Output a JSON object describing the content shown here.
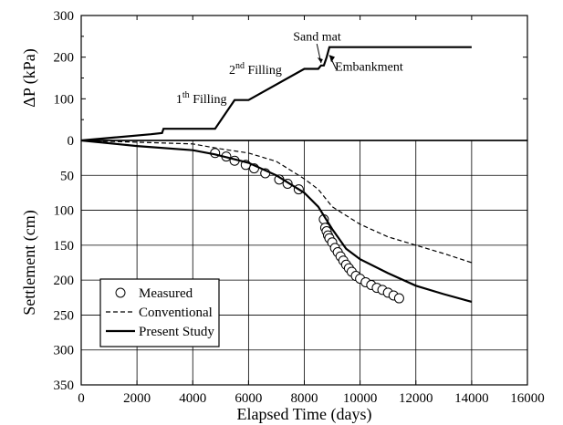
{
  "chart_data": [
    {
      "type": "line",
      "xlabel": "",
      "ylabel": "ΔP (kPa)",
      "xlim": [
        0,
        16000
      ],
      "ylim": [
        0,
        300
      ],
      "x_ticks": [
        0,
        2000,
        4000,
        6000,
        8000,
        10000,
        12000,
        14000,
        16000
      ],
      "y_ticks": [
        0,
        100,
        200,
        300
      ],
      "y_tick_labels": [
        "0",
        "100",
        "200",
        "300"
      ],
      "grid": false,
      "series": [
        {
          "name": "",
          "style": "solid",
          "points": [
            [
              0,
              0
            ],
            [
              2500,
              15
            ],
            [
              2900,
              18
            ],
            [
              2950,
              28
            ],
            [
              4800,
              28
            ],
            [
              5500,
              97
            ],
            [
              6000,
              97
            ],
            [
              8000,
              172
            ],
            [
              8500,
              172
            ],
            [
              8600,
              180
            ],
            [
              8700,
              180
            ],
            [
              8800,
              200
            ],
            [
              8900,
              224
            ],
            [
              14000,
              224
            ]
          ]
        }
      ],
      "annotations": [
        {
          "text": "1th Filling",
          "base": "1",
          "sup": "th",
          "rest": " Filling",
          "x": 3400,
          "y": 90
        },
        {
          "text": "2nd Filling",
          "base": "2",
          "sup": "nd",
          "rest": " Filling",
          "x": 5300,
          "y": 160
        },
        {
          "text": "Sand mat",
          "base": "Sand mat",
          "sup": "",
          "rest": "",
          "x": 7600,
          "y": 240
        },
        {
          "text": "Embankment",
          "base": "Embankment",
          "sup": "",
          "rest": "",
          "x": 9100,
          "y": 168
        }
      ]
    },
    {
      "type": "line",
      "xlabel": "Elapsed Time (days)",
      "ylabel": "Settlement (cm)",
      "xlim": [
        0,
        16000
      ],
      "ylim": [
        0,
        350
      ],
      "y_inverted": true,
      "x_ticks": [
        0,
        2000,
        4000,
        6000,
        8000,
        10000,
        12000,
        14000,
        16000
      ],
      "x_tick_labels": [
        "0",
        "2000",
        "4000",
        "6000",
        "8000",
        "10000",
        "12000",
        "14000",
        "16000"
      ],
      "y_ticks": [
        0,
        50,
        100,
        150,
        200,
        250,
        300,
        350
      ],
      "y_tick_labels": [
        "0",
        "50",
        "100",
        "150",
        "200",
        "250",
        "300",
        "350"
      ],
      "grid": true,
      "legend_position": "bottom-left",
      "series": [
        {
          "name": "Measured",
          "style": "markers",
          "points": [
            [
              4800,
              18
            ],
            [
              5200,
              23
            ],
            [
              5500,
              29
            ],
            [
              5900,
              35
            ],
            [
              6200,
              40
            ],
            [
              6600,
              47
            ],
            [
              7100,
              56
            ],
            [
              7400,
              62
            ],
            [
              7800,
              70
            ],
            [
              8700,
              113
            ],
            [
              8750,
              125
            ],
            [
              8800,
              130
            ],
            [
              8850,
              136
            ],
            [
              8900,
              140
            ],
            [
              9000,
              146
            ],
            [
              9100,
              154
            ],
            [
              9200,
              160
            ],
            [
              9300,
              166
            ],
            [
              9400,
              172
            ],
            [
              9500,
              178
            ],
            [
              9600,
              183
            ],
            [
              9700,
              188
            ],
            [
              9850,
              194
            ],
            [
              10000,
              198
            ],
            [
              10200,
              203
            ],
            [
              10400,
              207
            ],
            [
              10600,
              211
            ],
            [
              10800,
              214
            ],
            [
              11000,
              218
            ],
            [
              11200,
              222
            ],
            [
              11400,
              226
            ]
          ]
        },
        {
          "name": "Conventional",
          "style": "dashed",
          "points": [
            [
              0,
              0
            ],
            [
              4000,
              5
            ],
            [
              5000,
              12
            ],
            [
              6000,
              18
            ],
            [
              7000,
              30
            ],
            [
              8000,
              55
            ],
            [
              8500,
              70
            ],
            [
              9000,
              95
            ],
            [
              10000,
              120
            ],
            [
              11000,
              138
            ],
            [
              12000,
              150
            ],
            [
              13000,
              162
            ],
            [
              14000,
              175
            ]
          ]
        },
        {
          "name": "Present Study",
          "style": "solid",
          "points": [
            [
              0,
              0
            ],
            [
              2000,
              8
            ],
            [
              4000,
              14
            ],
            [
              4800,
              20
            ],
            [
              6000,
              32
            ],
            [
              7000,
              50
            ],
            [
              8000,
              75
            ],
            [
              8500,
              95
            ],
            [
              9000,
              127
            ],
            [
              9500,
              155
            ],
            [
              10000,
              170
            ],
            [
              11000,
              190
            ],
            [
              12000,
              208
            ],
            [
              13000,
              220
            ],
            [
              14000,
              231
            ]
          ]
        }
      ]
    }
  ]
}
